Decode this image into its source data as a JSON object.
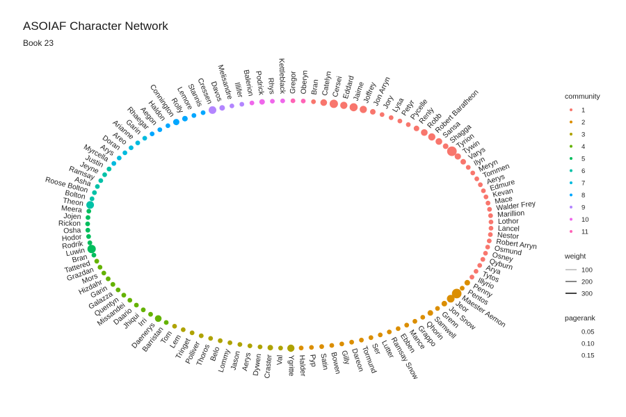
{
  "title": "ASOIAF Character Network",
  "subtitle": "Book 23",
  "chart_data": {
    "type": "network",
    "layout": "circle",
    "legend": {
      "community": {
        "title": "community",
        "levels": [
          "1",
          "2",
          "3",
          "4",
          "5",
          "6",
          "7",
          "8",
          "9",
          "10",
          "11"
        ]
      },
      "weight": {
        "title": "weight",
        "levels": [
          "100",
          "200",
          "300"
        ]
      },
      "pagerank": {
        "title": "pagerank",
        "levels": [
          "0.05",
          "0.10",
          "0.15"
        ]
      }
    },
    "community_colors": {
      "1": "#F8766D",
      "2": "#DB8E00",
      "3": "#AEA200",
      "4": "#64B200",
      "5": "#00BD5C",
      "6": "#00C1A7",
      "7": "#00BADE",
      "8": "#00A6FF",
      "9": "#B385FF",
      "10": "#EF67EB",
      "11": "#FF63B6"
    },
    "nodes": [
      {
        "name": "Bran",
        "community": "1",
        "pagerank": 0.01
      },
      {
        "name": "Catelyn",
        "community": "1",
        "pagerank": 0.04
      },
      {
        "name": "Cersei",
        "community": "1",
        "pagerank": 0.08
      },
      {
        "name": "Eddard",
        "community": "1",
        "pagerank": 0.05
      },
      {
        "name": "Jaime",
        "community": "1",
        "pagerank": 0.07
      },
      {
        "name": "Joffrey",
        "community": "1",
        "pagerank": 0.05
      },
      {
        "name": "Jon Arryn",
        "community": "1",
        "pagerank": 0.02
      },
      {
        "name": "Jory",
        "community": "1",
        "pagerank": 0.01
      },
      {
        "name": "Lysa",
        "community": "1",
        "pagerank": 0.01
      },
      {
        "name": "Petyr",
        "community": "1",
        "pagerank": 0.01
      },
      {
        "name": "Pycelle",
        "community": "1",
        "pagerank": 0.01
      },
      {
        "name": "Renly",
        "community": "1",
        "pagerank": 0.02
      },
      {
        "name": "Robb",
        "community": "1",
        "pagerank": 0.04
      },
      {
        "name": "Robert Baratheon",
        "community": "1",
        "pagerank": 0.05
      },
      {
        "name": "Sansa",
        "community": "1",
        "pagerank": 0.04
      },
      {
        "name": "Shagga",
        "community": "1",
        "pagerank": 0.02
      },
      {
        "name": "Tyrion",
        "community": "1",
        "pagerank": 0.12
      },
      {
        "name": "Tywin",
        "community": "1",
        "pagerank": 0.03
      },
      {
        "name": "Varys",
        "community": "1",
        "pagerank": 0.02
      },
      {
        "name": "Ilyn",
        "community": "1",
        "pagerank": 0.01
      },
      {
        "name": "Meryn",
        "community": "1",
        "pagerank": 0.01
      },
      {
        "name": "Tommen",
        "community": "1",
        "pagerank": 0.01
      },
      {
        "name": "Aerys",
        "community": "1",
        "pagerank": 0.01
      },
      {
        "name": "Edmure",
        "community": "1",
        "pagerank": 0.01
      },
      {
        "name": "Kevan",
        "community": "1",
        "pagerank": 0.01
      },
      {
        "name": "Mace",
        "community": "1",
        "pagerank": 0.01
      },
      {
        "name": "Walder Frey",
        "community": "1",
        "pagerank": 0.01
      },
      {
        "name": "Marillion",
        "community": "1",
        "pagerank": 0.01
      },
      {
        "name": "Lothor",
        "community": "1",
        "pagerank": 0.01
      },
      {
        "name": "Lancel",
        "community": "1",
        "pagerank": 0.01
      },
      {
        "name": "Nestor",
        "community": "1",
        "pagerank": 0.01
      },
      {
        "name": "Robert Arryn",
        "community": "1",
        "pagerank": 0.01
      },
      {
        "name": "Osmund",
        "community": "1",
        "pagerank": 0.01
      },
      {
        "name": "Osney",
        "community": "1",
        "pagerank": 0.01
      },
      {
        "name": "Qyburn",
        "community": "1",
        "pagerank": 0.01
      },
      {
        "name": "Arya",
        "community": "1",
        "pagerank": 0.01
      },
      {
        "name": "Tytos",
        "community": "1",
        "pagerank": 0.01
      },
      {
        "name": "Illyrio",
        "community": "1",
        "pagerank": 0.01
      },
      {
        "name": "Penny",
        "community": "2",
        "pagerank": 0.02
      },
      {
        "name": "Pentos",
        "community": "2",
        "pagerank": 0.01
      },
      {
        "name": "Maester Aemon",
        "community": "2",
        "pagerank": 0.12
      },
      {
        "name": "Jeor",
        "community": "2",
        "pagerank": 0.06
      },
      {
        "name": "Jon Snow",
        "community": "2",
        "pagerank": 0.02
      },
      {
        "name": "Grenn",
        "community": "2",
        "pagerank": 0.01
      },
      {
        "name": "Samwell",
        "community": "2",
        "pagerank": 0.02
      },
      {
        "name": "Qhorin",
        "community": "2",
        "pagerank": 0.01
      },
      {
        "name": "Grappo",
        "community": "2",
        "pagerank": 0.01
      },
      {
        "name": "Mance",
        "community": "2",
        "pagerank": 0.01
      },
      {
        "name": "Ebben",
        "community": "2",
        "pagerank": 0.01
      },
      {
        "name": "Ramsay Snow",
        "community": "2",
        "pagerank": 0.01
      },
      {
        "name": "Lutter",
        "community": "2",
        "pagerank": 0.01
      },
      {
        "name": "Ser",
        "community": "2",
        "pagerank": 0.01
      },
      {
        "name": "Tormund",
        "community": "2",
        "pagerank": 0.01
      },
      {
        "name": "Dareon",
        "community": "2",
        "pagerank": 0.01
      },
      {
        "name": "Gilly",
        "community": "2",
        "pagerank": 0.01
      },
      {
        "name": "Bowen",
        "community": "2",
        "pagerank": 0.01
      },
      {
        "name": "Satin",
        "community": "2",
        "pagerank": 0.01
      },
      {
        "name": "Pyp",
        "community": "2",
        "pagerank": 0.01
      },
      {
        "name": "Halder",
        "community": "2",
        "pagerank": 0.01
      },
      {
        "name": "Ygritte",
        "community": "3",
        "pagerank": 0.05
      },
      {
        "name": "Val",
        "community": "3",
        "pagerank": 0.01
      },
      {
        "name": "Craster",
        "community": "3",
        "pagerank": 0.02
      },
      {
        "name": "Dywen",
        "community": "3",
        "pagerank": 0.01
      },
      {
        "name": "Aerys",
        "community": "3",
        "pagerank": 0.01
      },
      {
        "name": "Jason",
        "community": "3",
        "pagerank": 0.01
      },
      {
        "name": "Lommy",
        "community": "3",
        "pagerank": 0.01
      },
      {
        "name": "Belo",
        "community": "3",
        "pagerank": 0.01
      },
      {
        "name": "Thoros",
        "community": "3",
        "pagerank": 0.01
      },
      {
        "name": "Polliver",
        "community": "3",
        "pagerank": 0.01
      },
      {
        "name": "Tringet",
        "community": "3",
        "pagerank": 0.01
      },
      {
        "name": "Lem",
        "community": "3",
        "pagerank": 0.01
      },
      {
        "name": "Tom",
        "community": "3",
        "pagerank": 0.01
      },
      {
        "name": "Barristan",
        "community": "4",
        "pagerank": 0.01
      },
      {
        "name": "Daenerys",
        "community": "4",
        "pagerank": 0.04
      },
      {
        "name": "Irri",
        "community": "4",
        "pagerank": 0.01
      },
      {
        "name": "Jhiqui",
        "community": "4",
        "pagerank": 0.01
      },
      {
        "name": "Daario",
        "community": "4",
        "pagerank": 0.01
      },
      {
        "name": "Missandei",
        "community": "4",
        "pagerank": 0.01
      },
      {
        "name": "Quentyn",
        "community": "4",
        "pagerank": 0.01
      },
      {
        "name": "Galazza",
        "community": "4",
        "pagerank": 0.01
      },
      {
        "name": "Garin",
        "community": "4",
        "pagerank": 0.01
      },
      {
        "name": "Hizdahr",
        "community": "4",
        "pagerank": 0.01
      },
      {
        "name": "Mors",
        "community": "4",
        "pagerank": 0.01
      },
      {
        "name": "Grazdan",
        "community": "4",
        "pagerank": 0.01
      },
      {
        "name": "Tattered",
        "community": "4",
        "pagerank": 0.01
      },
      {
        "name": "Bran",
        "community": "5",
        "pagerank": 0.01
      },
      {
        "name": "Luwin",
        "community": "5",
        "pagerank": 0.08
      },
      {
        "name": "Rodrik",
        "community": "5",
        "pagerank": 0.01
      },
      {
        "name": "Hodor",
        "community": "5",
        "pagerank": 0.01
      },
      {
        "name": "Osha",
        "community": "5",
        "pagerank": 0.01
      },
      {
        "name": "Rickon",
        "community": "5",
        "pagerank": 0.01
      },
      {
        "name": "Jojen",
        "community": "5",
        "pagerank": 0.01
      },
      {
        "name": "Meera",
        "community": "5",
        "pagerank": 0.01
      },
      {
        "name": "Theon",
        "community": "6",
        "pagerank": 0.06
      },
      {
        "name": "Bolton",
        "community": "6",
        "pagerank": 0.01
      },
      {
        "name": "Roose Bolton",
        "community": "6",
        "pagerank": 0.01
      },
      {
        "name": "Asha",
        "community": "6",
        "pagerank": 0.01
      },
      {
        "name": "Ramsay",
        "community": "6",
        "pagerank": 0.01
      },
      {
        "name": "Jeyne",
        "community": "6",
        "pagerank": 0.01
      },
      {
        "name": "Justin",
        "community": "6",
        "pagerank": 0.01
      },
      {
        "name": "Myrcella",
        "community": "7",
        "pagerank": 0.01
      },
      {
        "name": "Arys",
        "community": "7",
        "pagerank": 0.01
      },
      {
        "name": "Doran",
        "community": "7",
        "pagerank": 0.01
      },
      {
        "name": "Areo",
        "community": "7",
        "pagerank": 0.01
      },
      {
        "name": "Arianne",
        "community": "7",
        "pagerank": 0.01
      },
      {
        "name": "Garin",
        "community": "7",
        "pagerank": 0.01
      },
      {
        "name": "Rhaegar",
        "community": "8",
        "pagerank": 0.01
      },
      {
        "name": "Aegon",
        "community": "8",
        "pagerank": 0.01
      },
      {
        "name": "Haldon",
        "community": "8",
        "pagerank": 0.01
      },
      {
        "name": "Connington",
        "community": "8",
        "pagerank": 0.03
      },
      {
        "name": "Rolly",
        "community": "8",
        "pagerank": 0.02
      },
      {
        "name": "Lemore",
        "community": "8",
        "pagerank": 0.01
      },
      {
        "name": "Stannis",
        "community": "8",
        "pagerank": 0.01
      },
      {
        "name": "Cressen",
        "community": "9",
        "pagerank": 0.06
      },
      {
        "name": "Davos",
        "community": "9",
        "pagerank": 0.02
      },
      {
        "name": "Melisandre",
        "community": "9",
        "pagerank": 0.01
      },
      {
        "name": "Illifer",
        "community": "9",
        "pagerank": 0.01
      },
      {
        "name": "Balerion",
        "community": "10",
        "pagerank": 0.01
      },
      {
        "name": "Podrick",
        "community": "10",
        "pagerank": 0.02
      },
      {
        "name": "Rhys",
        "community": "10",
        "pagerank": 0.01
      },
      {
        "name": "Kettleblack",
        "community": "10",
        "pagerank": 0.01
      },
      {
        "name": "Gregor",
        "community": "11",
        "pagerank": 0.01
      },
      {
        "name": "Oberyn",
        "community": "11",
        "pagerank": 0.01
      }
    ]
  }
}
